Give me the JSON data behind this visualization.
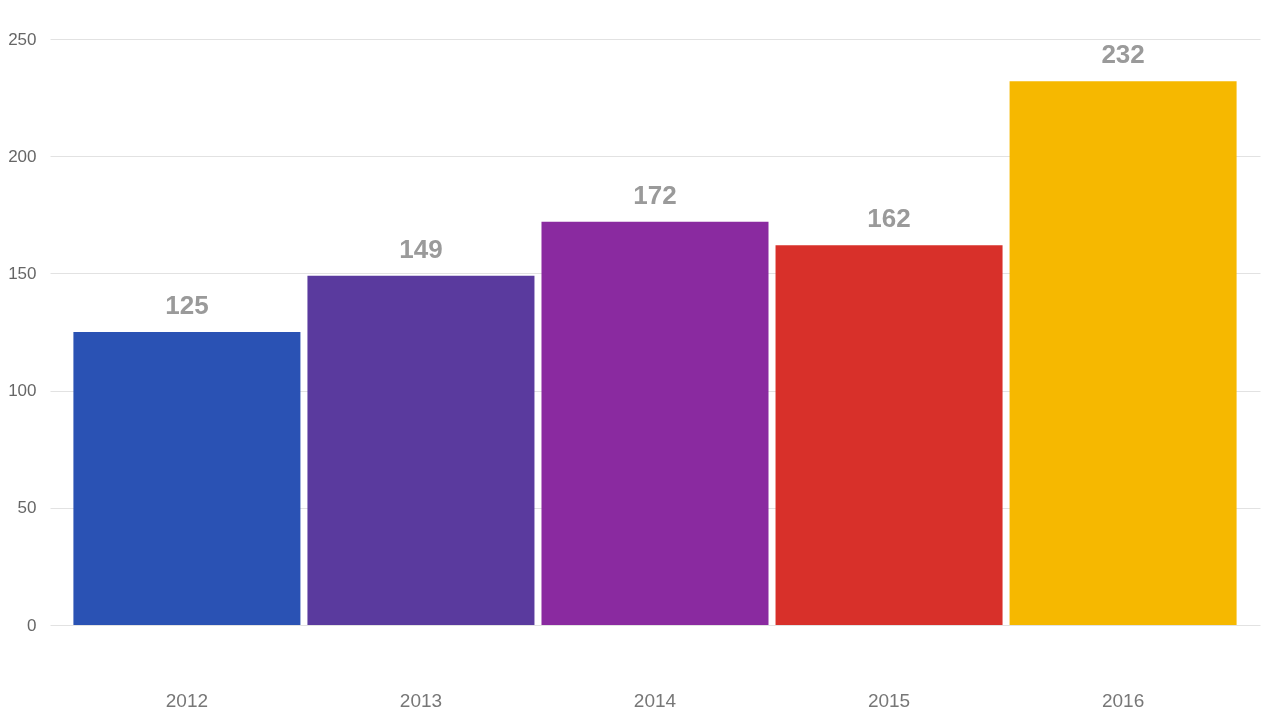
{
  "chart_data": {
    "type": "bar",
    "categories": [
      "2012",
      "2013",
      "2014",
      "2015",
      "2016"
    ],
    "values": [
      125,
      149,
      172,
      162,
      232
    ],
    "colors": [
      "#2a52b4",
      "#5a3a9e",
      "#8a2aa0",
      "#d8302a",
      "#f6b800"
    ],
    "ylim": [
      0,
      250
    ],
    "yticks": [
      0,
      50,
      100,
      150,
      200,
      250
    ],
    "grid": "y",
    "data_labels": true
  }
}
